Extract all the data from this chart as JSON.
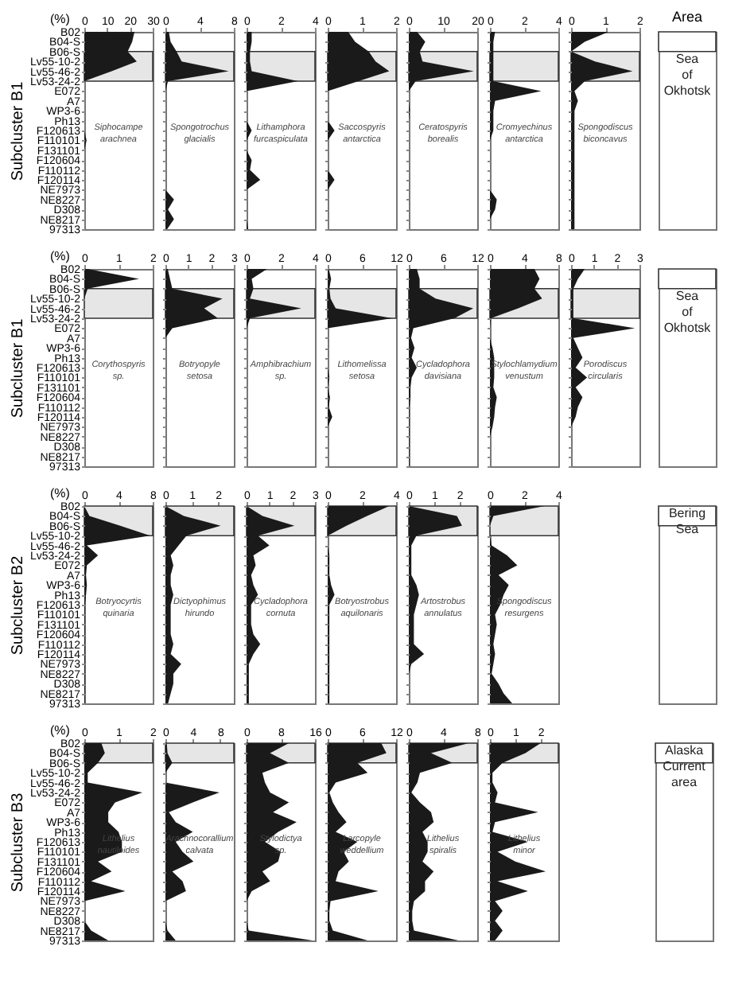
{
  "chart_data": [
    {
      "type": "area",
      "orientation": "horizontal",
      "title": "Siphocampe arachnea",
      "xlabel": "(%)",
      "ylabel": "Subcluster B1",
      "color": "#1a1a1a",
      "xlim": [
        0,
        30
      ],
      "xticks": [
        0,
        10,
        20,
        30
      ],
      "bands": [
        {
          "axis": "y",
          "from": "B06-S",
          "to": "Lv53-24-2"
        }
      ],
      "categories": [
        "B02",
        "B04-S",
        "B06-S",
        "Lv55-10-2",
        "Lv55-46-2",
        "Lv53-24-2",
        "E072",
        "A7",
        "WP3-6",
        "Ph13",
        "F120613",
        "F110101",
        "F131101",
        "F120604",
        "F110112",
        "F120114",
        "NE7973",
        "NE8227",
        "D308",
        "NE8217",
        "97313"
      ],
      "values": [
        22,
        21,
        19,
        23,
        12,
        0,
        0,
        0,
        0,
        0,
        0,
        1,
        0,
        0,
        0,
        0,
        0,
        0,
        0,
        0,
        0
      ]
    },
    {
      "type": "area",
      "orientation": "horizontal",
      "title": "Spongotrochus glacialis",
      "tick_labels": "x",
      "color": "#1a1a1a",
      "xlim": [
        0,
        8
      ],
      "xticks": [
        0,
        4,
        8
      ],
      "bands": [
        {
          "axis": "y",
          "from": "B06-S",
          "to": "Lv53-24-2"
        }
      ],
      "categories": [
        "B02",
        "B04-S",
        "B06-S",
        "Lv55-10-2",
        "Lv55-46-2",
        "Lv53-24-2",
        "E072",
        "A7",
        "WP3-6",
        "Ph13",
        "F120613",
        "F110101",
        "F131101",
        "F120604",
        "F110112",
        "F120114",
        "NE7973",
        "NE8227",
        "D308",
        "NE8217",
        "97313"
      ],
      "values": [
        0.4,
        0.6,
        1.3,
        1.9,
        7.4,
        0.3,
        0,
        0,
        0,
        0,
        0,
        0,
        0,
        0,
        0,
        0,
        0,
        1,
        0.3,
        1,
        0.2
      ]
    },
    {
      "type": "area",
      "orientation": "horizontal",
      "title": "Lithamphora furcaspiculata",
      "tick_labels": "x",
      "color": "#1a1a1a",
      "xlim": [
        0,
        4
      ],
      "xticks": [
        0,
        2,
        4
      ],
      "bands": [
        {
          "axis": "y",
          "from": "B06-S",
          "to": "Lv53-24-2"
        }
      ],
      "categories": [
        "B02",
        "B04-S",
        "B06-S",
        "Lv55-10-2",
        "Lv55-46-2",
        "Lv53-24-2",
        "E072",
        "A7",
        "WP3-6",
        "Ph13",
        "F120613",
        "F110101",
        "F131101",
        "F120604",
        "F110112",
        "F120114",
        "NE7973",
        "NE8227",
        "D308",
        "NE8217",
        "97313"
      ],
      "values": [
        0.3,
        0.3,
        0.2,
        0.2,
        0.3,
        3,
        0,
        0,
        0,
        0,
        0.3,
        0,
        0,
        0.3,
        0.2,
        0.8,
        0,
        0,
        0,
        0,
        0.1
      ]
    },
    {
      "type": "area",
      "orientation": "horizontal",
      "title": "Saccospyris antarctica",
      "tick_labels": "x",
      "color": "#1a1a1a",
      "xlim": [
        0,
        2
      ],
      "xticks": [
        0,
        1,
        2
      ],
      "bands": [
        {
          "axis": "y",
          "from": "B06-S",
          "to": "Lv53-24-2"
        }
      ],
      "categories": [
        "B02",
        "B04-S",
        "B06-S",
        "Lv55-10-2",
        "Lv55-46-2",
        "Lv53-24-2",
        "E072",
        "A7",
        "WP3-6",
        "Ph13",
        "F120613",
        "F110101",
        "F131101",
        "F120604",
        "F110112",
        "F120114",
        "NE7973",
        "NE8227",
        "D308",
        "NE8217",
        "97313"
      ],
      "values": [
        0.6,
        0.8,
        1.2,
        1.4,
        1.8,
        0.9,
        0,
        0,
        0,
        0,
        0.2,
        0,
        0,
        0,
        0,
        0.2,
        0,
        0,
        0,
        0,
        0
      ]
    },
    {
      "type": "area",
      "orientation": "horizontal",
      "title": "Ceratospyris borealis",
      "tick_labels": "x",
      "color": "#1a1a1a",
      "xlim": [
        0,
        20
      ],
      "xticks": [
        0,
        10,
        20
      ],
      "bands": [
        {
          "axis": "y",
          "from": "B06-S",
          "to": "Lv53-24-2"
        }
      ],
      "categories": [
        "B02",
        "B04-S",
        "B06-S",
        "Lv55-10-2",
        "Lv55-46-2",
        "Lv53-24-2",
        "E072",
        "A7",
        "WP3-6",
        "Ph13",
        "F120613",
        "F110101",
        "F131101",
        "F120604",
        "F110112",
        "F120114",
        "NE7973",
        "NE8227",
        "D308",
        "NE8217",
        "97313"
      ],
      "values": [
        2.4,
        4.8,
        3.2,
        4,
        19,
        2,
        0,
        0,
        0.3,
        0,
        0,
        0,
        0,
        0,
        0,
        0,
        0,
        0,
        0,
        0,
        0
      ]
    },
    {
      "type": "area",
      "orientation": "horizontal",
      "title": "Cromyechinus antarctica",
      "tick_labels": "x",
      "color": "#1a1a1a",
      "xlim": [
        0,
        4
      ],
      "xticks": [
        0,
        2,
        4
      ],
      "bands": [
        {
          "axis": "y",
          "from": "B06-S",
          "to": "Lv53-24-2"
        }
      ],
      "categories": [
        "B02",
        "B04-S",
        "B06-S",
        "Lv55-10-2",
        "Lv55-46-2",
        "Lv53-24-2",
        "E072",
        "A7",
        "WP3-6",
        "Ph13",
        "F120613",
        "F110101",
        "F131101",
        "F120604",
        "F110112",
        "F120114",
        "NE7973",
        "NE8227",
        "D308",
        "NE8217",
        "97313"
      ],
      "values": [
        0.3,
        0.2,
        0.2,
        0.2,
        0.2,
        0.2,
        3,
        0.3,
        0.2,
        0.2,
        0.2,
        0,
        0,
        0,
        0,
        0,
        0,
        0.4,
        0.3,
        0,
        0
      ]
    },
    {
      "type": "area",
      "orientation": "horizontal",
      "title": "Spongodiscus biconcavus",
      "tick_labels": "x",
      "color": "#1a1a1a",
      "xlim": [
        0,
        2
      ],
      "xticks": [
        0,
        1,
        2
      ],
      "bands": [
        {
          "axis": "y",
          "from": "B06-S",
          "to": "Lv53-24-2",
          "label": "Sea of Okhotsk"
        }
      ],
      "categories": [
        "B02",
        "B04-S",
        "B06-S",
        "Lv55-10-2",
        "Lv55-46-2",
        "Lv53-24-2",
        "E072",
        "A7",
        "WP3-6",
        "Ph13",
        "F120613",
        "F110101",
        "F131101",
        "F120604",
        "F110112",
        "F120114",
        "NE7973",
        "NE8227",
        "D308",
        "NE8217",
        "97313"
      ],
      "values": [
        1.1,
        0.4,
        0,
        0.7,
        1.8,
        0.4,
        0.1,
        0.2,
        0.1,
        0.1,
        0.1,
        0.1,
        0.1,
        0.1,
        0.1,
        0.1,
        0.1,
        0.1,
        0.1,
        0.1,
        0.1
      ]
    },
    {
      "type": "area",
      "orientation": "horizontal",
      "title": "Corythospyris sp.",
      "xlabel": "(%)",
      "ylabel": "Subcluster B1",
      "color": "#1a1a1a",
      "xlim": [
        0,
        2
      ],
      "xticks": [
        0,
        1,
        2
      ],
      "bands": [
        {
          "axis": "y",
          "from": "B06-S",
          "to": "Lv53-24-2"
        }
      ],
      "categories": [
        "B02",
        "B04-S",
        "B06-S",
        "Lv55-10-2",
        "Lv55-46-2",
        "Lv53-24-2",
        "E072",
        "A7",
        "WP3-6",
        "Ph13",
        "F120613",
        "F110101",
        "F131101",
        "F120604",
        "F110112",
        "F120114",
        "NE7973",
        "NE8227",
        "D308",
        "NE8217",
        "97313"
      ],
      "values": [
        0.1,
        1.6,
        0.1,
        0,
        0,
        0,
        0,
        0,
        0,
        0,
        0,
        0,
        0,
        0,
        0,
        0,
        0,
        0,
        0,
        0,
        0
      ]
    },
    {
      "type": "area",
      "orientation": "horizontal",
      "title": "Botryopyle setosa",
      "tick_labels": "x",
      "color": "#1a1a1a",
      "xlim": [
        0,
        3
      ],
      "xticks": [
        0,
        1,
        2,
        3
      ],
      "bands": [
        {
          "axis": "y",
          "from": "B06-S",
          "to": "Lv53-24-2"
        }
      ],
      "categories": [
        "B02",
        "B04-S",
        "B06-S",
        "Lv55-10-2",
        "Lv55-46-2",
        "Lv53-24-2",
        "E072",
        "A7",
        "WP3-6",
        "Ph13",
        "F120613",
        "F110101",
        "F131101",
        "F120604",
        "F110112",
        "F120114",
        "NE7973",
        "NE8227",
        "D308",
        "NE8217",
        "97313"
      ],
      "values": [
        0.1,
        0.2,
        0.3,
        2.5,
        1.7,
        2.3,
        0.3,
        0,
        0,
        0,
        0,
        0,
        0,
        0,
        0,
        0,
        0,
        0,
        0,
        0,
        0
      ]
    },
    {
      "type": "area",
      "orientation": "horizontal",
      "title": "Amphibrachium sp.",
      "tick_labels": "x",
      "color": "#1a1a1a",
      "xlim": [
        0,
        4
      ],
      "xticks": [
        0,
        2,
        4
      ],
      "bands": [
        {
          "axis": "y",
          "from": "B06-S",
          "to": "Lv53-24-2"
        }
      ],
      "categories": [
        "B02",
        "B04-S",
        "B06-S",
        "Lv55-10-2",
        "Lv55-46-2",
        "Lv53-24-2",
        "E072",
        "A7",
        "WP3-6",
        "Ph13",
        "F120613",
        "F110101",
        "F131101",
        "F120604",
        "F110112",
        "F120114",
        "NE7973",
        "NE8227",
        "D308",
        "NE8217",
        "97313"
      ],
      "values": [
        1.2,
        0.3,
        0.4,
        0.2,
        3.2,
        0.2,
        0,
        0,
        0,
        0,
        0,
        0,
        0,
        0,
        0,
        0,
        0,
        0,
        0,
        0,
        0
      ]
    },
    {
      "type": "area",
      "orientation": "horizontal",
      "title": "Lithomelissa setosa",
      "tick_labels": "x",
      "color": "#1a1a1a",
      "xlim": [
        0,
        12
      ],
      "xticks": [
        0,
        6,
        12
      ],
      "bands": [
        {
          "axis": "y",
          "from": "B06-S",
          "to": "Lv53-24-2"
        }
      ],
      "categories": [
        "B02",
        "B04-S",
        "B06-S",
        "Lv55-10-2",
        "Lv55-46-2",
        "Lv53-24-2",
        "E072",
        "A7",
        "WP3-6",
        "Ph13",
        "F120613",
        "F110101",
        "F131101",
        "F120604",
        "F110112",
        "F120114",
        "NE7973",
        "NE8227",
        "D308",
        "NE8217",
        "97313"
      ],
      "values": [
        0.2,
        0.6,
        0.3,
        0.5,
        1.4,
        11.3,
        0,
        0,
        0,
        0,
        0,
        0.3,
        0,
        0.4,
        0.2,
        0.8,
        0,
        0,
        0,
        0,
        0
      ]
    },
    {
      "type": "area",
      "orientation": "horizontal",
      "title": "Cycladophora davisiana",
      "tick_labels": "x",
      "color": "#1a1a1a",
      "xlim": [
        0,
        12
      ],
      "xticks": [
        0,
        6,
        12
      ],
      "bands": [
        {
          "axis": "y",
          "from": "B06-S",
          "to": "Lv53-24-2"
        }
      ],
      "categories": [
        "B02",
        "B04-S",
        "B06-S",
        "Lv55-10-2",
        "Lv55-46-2",
        "Lv53-24-2",
        "E072",
        "A7",
        "WP3-6",
        "Ph13",
        "F120613",
        "F110101",
        "F131101",
        "F120604",
        "F110112",
        "F120114",
        "NE7973",
        "NE8227",
        "D308",
        "NE8217",
        "97313"
      ],
      "values": [
        1.4,
        1.9,
        1.9,
        4.7,
        11.3,
        8,
        0.8,
        0.4,
        1,
        0.5,
        1.4,
        0.5,
        0.3,
        0.3,
        0.1,
        0.1,
        0.1,
        0.1,
        0.1,
        0.1,
        0.1
      ]
    },
    {
      "type": "area",
      "orientation": "horizontal",
      "title": "Stylochlamydium venustum",
      "tick_labels": "x",
      "color": "#1a1a1a",
      "xlim": [
        0,
        8
      ],
      "xticks": [
        0,
        4,
        8
      ],
      "bands": [
        {
          "axis": "y",
          "from": "B06-S",
          "to": "Lv53-24-2"
        }
      ],
      "categories": [
        "B02",
        "B04-S",
        "B06-S",
        "Lv55-10-2",
        "Lv55-46-2",
        "Lv53-24-2",
        "E072",
        "A7",
        "WP3-6",
        "Ph13",
        "F120613",
        "F110101",
        "F131101",
        "F120604",
        "F110112",
        "F120114",
        "NE7973",
        "NE8227",
        "D308",
        "NE8217",
        "97313"
      ],
      "values": [
        5.2,
        5.8,
        5.2,
        6.1,
        3.3,
        0.1,
        0,
        0,
        0.3,
        0.5,
        0.5,
        0.5,
        0.4,
        0.8,
        0.6,
        0.5,
        0.3,
        0,
        0,
        0,
        0
      ]
    },
    {
      "type": "area",
      "orientation": "horizontal",
      "title": "Porodiscus circularis",
      "tick_labels": "x",
      "color": "#1a1a1a",
      "xlim": [
        0,
        3
      ],
      "xticks": [
        0,
        1,
        2,
        3
      ],
      "bands": [
        {
          "axis": "y",
          "from": "B06-S",
          "to": "Lv53-24-2",
          "label": "Sea of Okhotsk"
        }
      ],
      "categories": [
        "B02",
        "B04-S",
        "B06-S",
        "Lv55-10-2",
        "Lv55-46-2",
        "Lv53-24-2",
        "E072",
        "A7",
        "WP3-6",
        "Ph13",
        "F120613",
        "F110101",
        "F131101",
        "F120604",
        "F110112",
        "F120114",
        "NE7973",
        "NE8227",
        "D308",
        "NE8217",
        "97313"
      ],
      "values": [
        0.6,
        0.3,
        0.1,
        0.1,
        0.1,
        0.1,
        2.8,
        0.1,
        0.3,
        0.5,
        0.2,
        0.7,
        0.2,
        0.5,
        0.3,
        0.2,
        0,
        0,
        0,
        0,
        0
      ]
    },
    {
      "type": "area",
      "orientation": "horizontal",
      "title": "Botryocyrtis quinaria",
      "xlabel": "(%)",
      "ylabel": "Subcluster B2",
      "color": "#1a1a1a",
      "xlim": [
        0,
        8
      ],
      "xticks": [
        0,
        4,
        8
      ],
      "bands": [
        {
          "axis": "y",
          "from": "B02",
          "to": "Lv55-10-2"
        }
      ],
      "categories": [
        "B02",
        "B04-S",
        "B06-S",
        "Lv55-10-2",
        "Lv55-46-2",
        "Lv53-24-2",
        "E072",
        "A7",
        "WP3-6",
        "Ph13",
        "F120613",
        "F110101",
        "F131101",
        "F120604",
        "F110112",
        "F120114",
        "NE7973",
        "NE8227",
        "D308",
        "NE8217",
        "97313"
      ],
      "values": [
        0,
        0.6,
        4.2,
        7.7,
        0.3,
        1.6,
        0.3,
        0.2,
        0.3,
        0.2,
        0.1,
        0.1,
        0.1,
        0.1,
        0.1,
        0.1,
        0.1,
        0.1,
        0.1,
        0.1,
        0.1
      ]
    },
    {
      "type": "area",
      "orientation": "horizontal",
      "title": "Dictyophimus hirundo",
      "tick_labels": "x",
      "color": "#1a1a1a",
      "xlim": [
        0,
        2.6
      ],
      "xticks": [
        0,
        1,
        2
      ],
      "bands": [
        {
          "axis": "y",
          "from": "B02",
          "to": "Lv55-10-2"
        }
      ],
      "categories": [
        "B02",
        "B04-S",
        "B06-S",
        "Lv55-10-2",
        "Lv55-46-2",
        "Lv53-24-2",
        "E072",
        "A7",
        "WP3-6",
        "Ph13",
        "F120613",
        "F110101",
        "F131101",
        "F120604",
        "F110112",
        "F120114",
        "NE7973",
        "NE8227",
        "D308",
        "NE8217",
        "97313"
      ],
      "values": [
        0,
        0.7,
        2.1,
        0.8,
        0.5,
        0.2,
        0.3,
        0.2,
        0.2,
        0.3,
        0.2,
        0.2,
        0.2,
        0.2,
        0.3,
        0.2,
        0.6,
        0.3,
        0.3,
        0.2,
        0.1
      ]
    },
    {
      "type": "area",
      "orientation": "horizontal",
      "title": "Cycladophora cornuta",
      "tick_labels": "x",
      "color": "#1a1a1a",
      "xlim": [
        0,
        3
      ],
      "xticks": [
        0,
        1,
        2,
        3
      ],
      "bands": [
        {
          "axis": "y",
          "from": "B02",
          "to": "Lv55-10-2"
        }
      ],
      "categories": [
        "B02",
        "B04-S",
        "B06-S",
        "Lv55-10-2",
        "Lv55-46-2",
        "Lv53-24-2",
        "E072",
        "A7",
        "WP3-6",
        "Ph13",
        "F120613",
        "F110101",
        "F131101",
        "F120604",
        "F110112",
        "F120114",
        "NE7973",
        "NE8227",
        "D308",
        "NE8217",
        "97313"
      ],
      "values": [
        0,
        0.7,
        2.1,
        0.5,
        1,
        0.3,
        0.4,
        0.2,
        0.3,
        0.5,
        0.2,
        0.2,
        0.2,
        0.3,
        0.6,
        0.3,
        0.1,
        0.1,
        0.1,
        0.1,
        0.1
      ]
    },
    {
      "type": "area",
      "orientation": "horizontal",
      "title": "Botryostrobus aquilonaris",
      "tick_labels": "x",
      "color": "#1a1a1a",
      "xlim": [
        0,
        4
      ],
      "xticks": [
        0,
        2,
        4
      ],
      "bands": [
        {
          "axis": "y",
          "from": "B02",
          "to": "Lv55-10-2"
        }
      ],
      "categories": [
        "B02",
        "B04-S",
        "B06-S",
        "Lv55-10-2",
        "Lv55-46-2",
        "Lv53-24-2",
        "E072",
        "A7",
        "WP3-6",
        "Ph13",
        "F120613",
        "F110101",
        "F131101",
        "F120604",
        "F110112",
        "F120114",
        "NE7973",
        "NE8227",
        "D308",
        "NE8217",
        "97313"
      ],
      "values": [
        3.6,
        2.3,
        1.1,
        0,
        0,
        0.1,
        0.1,
        0.1,
        0.2,
        0.4,
        0.1,
        0.1,
        0.1,
        0.1,
        0.1,
        0.1,
        0.1,
        0.1,
        0.1,
        0.1,
        0.1
      ]
    },
    {
      "type": "area",
      "orientation": "horizontal",
      "title": "Artostrobus annulatus",
      "tick_labels": "x",
      "color": "#1a1a1a",
      "xlim": [
        0,
        2.7
      ],
      "xticks": [
        0,
        1,
        2
      ],
      "bands": [
        {
          "axis": "y",
          "from": "B02",
          "to": "Lv55-10-2"
        }
      ],
      "categories": [
        "B02",
        "B04-S",
        "B06-S",
        "Lv55-10-2",
        "Lv55-46-2",
        "Lv53-24-2",
        "E072",
        "A7",
        "WP3-6",
        "Ph13",
        "F120613",
        "F110101",
        "F131101",
        "F120604",
        "F110112",
        "F120114",
        "NE7973",
        "NE8227",
        "D308",
        "NE8217",
        "97313"
      ],
      "values": [
        0,
        1.9,
        2.1,
        0.3,
        0.1,
        0.1,
        0.1,
        0.1,
        0.3,
        0.4,
        0.3,
        0.2,
        0.2,
        0.2,
        0.2,
        0.6,
        0.1,
        0,
        0,
        0,
        0
      ]
    },
    {
      "type": "area",
      "orientation": "horizontal",
      "title": "Spongodiscus resurgens",
      "tick_labels": "x",
      "color": "#1a1a1a",
      "xlim": [
        0,
        4
      ],
      "xticks": [
        0,
        2,
        4
      ],
      "bands": [
        {
          "axis": "y",
          "from": "B02",
          "to": "Lv55-10-2",
          "label": "Bering Sea"
        }
      ],
      "categories": [
        "B02",
        "B04-S",
        "B06-S",
        "Lv55-10-2",
        "Lv55-46-2",
        "Lv53-24-2",
        "E072",
        "A7",
        "WP3-6",
        "Ph13",
        "F120613",
        "F110101",
        "F131101",
        "F120604",
        "F110112",
        "F120114",
        "NE7973",
        "NE8227",
        "D308",
        "NE8217",
        "97313"
      ],
      "values": [
        3.2,
        0.2,
        0,
        0,
        0.1,
        1,
        1.6,
        0.5,
        1.1,
        0.8,
        0.6,
        0.3,
        0.4,
        0.3,
        0.2,
        0.3,
        0.2,
        0.1,
        0.5,
        0.8,
        1.3
      ]
    },
    {
      "type": "area",
      "orientation": "horizontal",
      "title": "Lithelius nautiloides",
      "xlabel": "(%)",
      "ylabel": "Subcluster B3",
      "color": "#1a1a1a",
      "xlim": [
        0,
        2
      ],
      "xticks": [
        0,
        1,
        2
      ],
      "bands": [
        {
          "axis": "y",
          "from": "B02",
          "to": "B06-S"
        }
      ],
      "categories": [
        "B02",
        "B04-S",
        "B06-S",
        "Lv55-10-2",
        "Lv55-46-2",
        "Lv53-24-2",
        "E072",
        "A7",
        "WP3-6",
        "Ph13",
        "F120613",
        "F110101",
        "F131101",
        "F120604",
        "F110112",
        "F120114",
        "NE7973",
        "NE8227",
        "D308",
        "NE8217",
        "97313"
      ],
      "values": [
        0.5,
        0.6,
        0.4,
        0.1,
        0.1,
        1.7,
        0.9,
        0.7,
        0.7,
        1,
        1.1,
        1.1,
        0.4,
        0.8,
        0.2,
        1.2,
        0,
        0,
        0,
        0.2,
        0.7
      ]
    },
    {
      "type": "area",
      "orientation": "horizontal",
      "title": "Arachnocorallium calvata",
      "tick_labels": "x",
      "color": "#1a1a1a",
      "xlim": [
        0,
        10
      ],
      "xticks": [
        0,
        4,
        8
      ],
      "bands": [
        {
          "axis": "y",
          "from": "B02",
          "to": "B06-S"
        }
      ],
      "categories": [
        "B02",
        "B04-S",
        "B06-S",
        "Lv55-10-2",
        "Lv55-46-2",
        "Lv53-24-2",
        "E072",
        "A7",
        "WP3-6",
        "Ph13",
        "F120613",
        "F110101",
        "F131101",
        "F120604",
        "F110112",
        "F120114",
        "NE7973",
        "NE8227",
        "D308",
        "NE8217",
        "97313"
      ],
      "values": [
        0.2,
        0.3,
        1,
        0,
        0,
        7.9,
        4,
        0.5,
        1.5,
        4,
        1.5,
        2.5,
        4.1,
        1,
        2.5,
        3,
        0,
        0,
        0,
        0.3,
        1.5
      ]
    },
    {
      "type": "area",
      "orientation": "horizontal",
      "title": "Stylodictya sp.",
      "tick_labels": "x",
      "color": "#1a1a1a",
      "xlim": [
        0,
        16
      ],
      "xticks": [
        0,
        8,
        16
      ],
      "bands": [
        {
          "axis": "y",
          "from": "B02",
          "to": "B06-S"
        }
      ],
      "categories": [
        "B02",
        "B04-S",
        "B06-S",
        "Lv55-10-2",
        "Lv55-46-2",
        "Lv53-24-2",
        "E072",
        "A7",
        "WP3-6",
        "Ph13",
        "F120613",
        "F110101",
        "F131101",
        "F120604",
        "F110112",
        "F120114",
        "NE7973",
        "NE8227",
        "D308",
        "NE8217",
        "97313"
      ],
      "values": [
        9.9,
        5.5,
        9.9,
        3.7,
        4.3,
        5.5,
        9.9,
        6.2,
        11.7,
        7.4,
        4.3,
        8,
        7.4,
        3.7,
        5.5,
        1.2,
        0,
        0,
        0,
        0.5,
        15.4
      ]
    },
    {
      "type": "area",
      "orientation": "horizontal",
      "title": "Larcopyle weddellium",
      "tick_labels": "x",
      "color": "#1a1a1a",
      "xlim": [
        0,
        12
      ],
      "xticks": [
        0,
        6,
        12
      ],
      "bands": [
        {
          "axis": "y",
          "from": "B02",
          "to": "B06-S"
        }
      ],
      "categories": [
        "B02",
        "B04-S",
        "B06-S",
        "Lv55-10-2",
        "Lv55-46-2",
        "Lv53-24-2",
        "E072",
        "A7",
        "WP3-6",
        "Ph13",
        "F120613",
        "F110101",
        "F131101",
        "F120604",
        "F110112",
        "F120114",
        "NE7973",
        "NE8227",
        "D308",
        "NE8217",
        "97313"
      ],
      "values": [
        9.4,
        10.3,
        5.2,
        7,
        1.4,
        0.3,
        0.9,
        1.9,
        3.3,
        1.4,
        5.2,
        2.8,
        3.7,
        1.9,
        1.4,
        8.9,
        0.5,
        0.3,
        0.3,
        0.9,
        7
      ]
    },
    {
      "type": "area",
      "orientation": "horizontal",
      "title": "Lithelius spiralis",
      "tick_labels": "x",
      "color": "#1a1a1a",
      "xlim": [
        0,
        8
      ],
      "xticks": [
        0,
        4,
        8
      ],
      "bands": [
        {
          "axis": "y",
          "from": "B02",
          "to": "B06-S"
        }
      ],
      "categories": [
        "B02",
        "B04-S",
        "B06-S",
        "Lv55-10-2",
        "Lv55-46-2",
        "Lv53-24-2",
        "E072",
        "A7",
        "WP3-6",
        "Ph13",
        "F120613",
        "F110101",
        "F131101",
        "F120604",
        "F110112",
        "F120114",
        "NE7973",
        "NE8227",
        "D308",
        "NE8217",
        "97313"
      ],
      "values": [
        7,
        2.6,
        5.1,
        1.3,
        1,
        0.3,
        1.3,
        2.6,
        2.9,
        1.6,
        2.2,
        2.2,
        1.6,
        2.9,
        1.9,
        1.9,
        0.6,
        0.4,
        0.4,
        0.6,
        5.8
      ]
    },
    {
      "type": "area",
      "orientation": "horizontal",
      "title": "Lithelius minor",
      "tick_labels": "x",
      "color": "#1a1a1a",
      "xlim": [
        0,
        2.7
      ],
      "xticks": [
        0,
        1,
        2
      ],
      "bands": [
        {
          "axis": "y",
          "from": "B02",
          "to": "B06-S",
          "label": "Alaska Current area"
        }
      ],
      "categories": [
        "B02",
        "B04-S",
        "B06-S",
        "Lv55-10-2",
        "Lv55-46-2",
        "Lv53-24-2",
        "E072",
        "A7",
        "WP3-6",
        "Ph13",
        "F120613",
        "F110101",
        "F131101",
        "F120604",
        "F110112",
        "F120114",
        "NE7973",
        "NE8227",
        "D308",
        "NE8217",
        "97313"
      ],
      "values": [
        2,
        1.4,
        0.5,
        0.1,
        0.1,
        0.3,
        0.2,
        1.9,
        0.2,
        0.1,
        1.5,
        0.3,
        1,
        2.2,
        0.3,
        1.5,
        0.2,
        0.5,
        0.2,
        0.5,
        0.2
      ]
    },
    {
      "type": "other",
      "title": "Area"
    }
  ]
}
